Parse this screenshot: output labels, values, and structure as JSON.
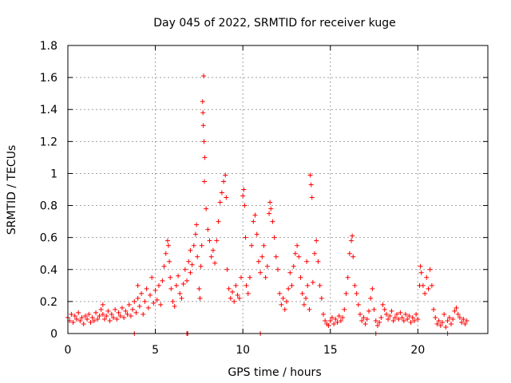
{
  "chart_data": {
    "type": "scatter",
    "title": "Day 045 of 2022, SRMTID for receiver kuge",
    "xlabel": "GPS time / hours",
    "ylabel": "SRMTID / TECUs",
    "xlim": [
      0,
      24
    ],
    "ylim": [
      0,
      1.8
    ],
    "xticks": [
      0,
      5,
      10,
      15,
      20
    ],
    "xtick_labels": [
      "0",
      "5",
      "10",
      "15",
      "20"
    ],
    "yticks": [
      0,
      0.2,
      0.4,
      0.6,
      0.8,
      1,
      1.2,
      1.4,
      1.6,
      1.8
    ],
    "ytick_labels": [
      "0",
      "0.2",
      "0.4",
      "0.6",
      "0.8",
      "1",
      "1.2",
      "1.4",
      "1.6",
      "1.8"
    ],
    "grid": true,
    "marker": "+",
    "color": "#ff0000",
    "series": [
      {
        "name": "SRMTID",
        "points": [
          [
            0.0,
            0.1
          ],
          [
            0.1,
            0.08
          ],
          [
            0.2,
            0.12
          ],
          [
            0.3,
            0.07
          ],
          [
            0.4,
            0.11
          ],
          [
            0.5,
            0.09
          ],
          [
            0.6,
            0.13
          ],
          [
            0.7,
            0.08
          ],
          [
            0.8,
            0.1
          ],
          [
            0.9,
            0.06
          ],
          [
            1.0,
            0.11
          ],
          [
            1.1,
            0.09
          ],
          [
            1.2,
            0.12
          ],
          [
            1.3,
            0.07
          ],
          [
            1.4,
            0.1
          ],
          [
            1.5,
            0.08
          ],
          [
            1.6,
            0.13
          ],
          [
            1.7,
            0.09
          ],
          [
            1.8,
            0.11
          ],
          [
            1.9,
            0.15
          ],
          [
            2.0,
            0.12
          ],
          [
            2.0,
            0.18
          ],
          [
            2.1,
            0.09
          ],
          [
            2.2,
            0.11
          ],
          [
            2.3,
            0.14
          ],
          [
            2.4,
            0.08
          ],
          [
            2.5,
            0.12
          ],
          [
            2.6,
            0.1
          ],
          [
            2.7,
            0.15
          ],
          [
            2.8,
            0.09
          ],
          [
            2.9,
            0.13
          ],
          [
            3.0,
            0.11
          ],
          [
            3.1,
            0.16
          ],
          [
            3.2,
            0.1
          ],
          [
            3.3,
            0.14
          ],
          [
            3.4,
            0.12
          ],
          [
            3.5,
            0.18
          ],
          [
            3.6,
            0.11
          ],
          [
            3.7,
            0.15
          ],
          [
            3.8,
            0.2
          ],
          [
            3.9,
            0.13
          ],
          [
            4.0,
            0.22
          ],
          [
            4.0,
            0.3
          ],
          [
            4.1,
            0.17
          ],
          [
            4.2,
            0.25
          ],
          [
            4.3,
            0.12
          ],
          [
            4.4,
            0.2
          ],
          [
            4.5,
            0.28
          ],
          [
            4.6,
            0.16
          ],
          [
            4.7,
            0.24
          ],
          [
            4.8,
            0.35
          ],
          [
            4.9,
            0.19
          ],
          [
            5.0,
            0.27
          ],
          [
            5.1,
            0.21
          ],
          [
            5.2,
            0.3
          ],
          [
            5.3,
            0.18
          ],
          [
            5.4,
            0.33
          ],
          [
            5.5,
            0.42
          ],
          [
            5.6,
            0.5
          ],
          [
            5.7,
            0.58
          ],
          [
            5.75,
            0.55
          ],
          [
            5.8,
            0.45
          ],
          [
            5.85,
            0.35
          ],
          [
            5.9,
            0.28
          ],
          [
            6.0,
            0.2
          ],
          [
            6.1,
            0.17
          ],
          [
            6.2,
            0.3
          ],
          [
            6.3,
            0.36
          ],
          [
            6.4,
            0.25
          ],
          [
            6.5,
            0.22
          ],
          [
            6.6,
            0.31
          ],
          [
            6.7,
            0.4
          ],
          [
            6.8,
            0.33
          ],
          [
            6.9,
            0.45
          ],
          [
            7.0,
            0.52
          ],
          [
            7.0,
            0.38
          ],
          [
            7.1,
            0.43
          ],
          [
            7.2,
            0.55
          ],
          [
            7.3,
            0.62
          ],
          [
            7.35,
            0.68
          ],
          [
            7.4,
            0.48
          ],
          [
            7.5,
            0.28
          ],
          [
            7.55,
            0.22
          ],
          [
            7.6,
            0.42
          ],
          [
            7.65,
            0.55
          ],
          [
            7.7,
            1.45
          ],
          [
            7.72,
            1.38
          ],
          [
            7.74,
            1.3
          ],
          [
            7.76,
            1.61
          ],
          [
            7.78,
            1.2
          ],
          [
            7.8,
            0.95
          ],
          [
            7.82,
            1.1
          ],
          [
            7.9,
            0.78
          ],
          [
            8.0,
            0.65
          ],
          [
            8.1,
            0.58
          ],
          [
            8.2,
            0.48
          ],
          [
            8.3,
            0.52
          ],
          [
            8.4,
            0.44
          ],
          [
            8.5,
            0.58
          ],
          [
            8.6,
            0.7
          ],
          [
            8.7,
            0.82
          ],
          [
            8.8,
            0.88
          ],
          [
            8.9,
            0.95
          ],
          [
            9.0,
            0.99
          ],
          [
            9.05,
            0.85
          ],
          [
            9.1,
            0.4
          ],
          [
            9.2,
            0.28
          ],
          [
            9.3,
            0.22
          ],
          [
            9.4,
            0.26
          ],
          [
            9.5,
            0.2
          ],
          [
            9.6,
            0.3
          ],
          [
            9.7,
            0.24
          ],
          [
            9.8,
            0.22
          ],
          [
            9.9,
            0.35
          ],
          [
            10.0,
            0.86
          ],
          [
            10.05,
            0.9
          ],
          [
            10.1,
            0.8
          ],
          [
            10.15,
            0.6
          ],
          [
            10.2,
            0.3
          ],
          [
            10.3,
            0.25
          ],
          [
            10.4,
            0.35
          ],
          [
            10.5,
            0.55
          ],
          [
            10.6,
            0.7
          ],
          [
            10.7,
            0.74
          ],
          [
            10.8,
            0.62
          ],
          [
            10.9,
            0.45
          ],
          [
            11.0,
            0.38
          ],
          [
            11.1,
            0.48
          ],
          [
            11.2,
            0.55
          ],
          [
            11.3,
            0.35
          ],
          [
            11.4,
            0.42
          ],
          [
            11.5,
            0.75
          ],
          [
            11.55,
            0.82
          ],
          [
            11.6,
            0.78
          ],
          [
            11.7,
            0.7
          ],
          [
            11.8,
            0.6
          ],
          [
            11.9,
            0.48
          ],
          [
            12.0,
            0.4
          ],
          [
            12.1,
            0.25
          ],
          [
            12.2,
            0.18
          ],
          [
            12.3,
            0.22
          ],
          [
            12.4,
            0.15
          ],
          [
            12.5,
            0.2
          ],
          [
            12.6,
            0.28
          ],
          [
            12.7,
            0.38
          ],
          [
            12.8,
            0.3
          ],
          [
            12.9,
            0.42
          ],
          [
            13.0,
            0.5
          ],
          [
            13.1,
            0.55
          ],
          [
            13.2,
            0.48
          ],
          [
            13.3,
            0.35
          ],
          [
            13.4,
            0.25
          ],
          [
            13.5,
            0.18
          ],
          [
            13.6,
            0.22
          ],
          [
            13.65,
            0.45
          ],
          [
            13.7,
            0.3
          ],
          [
            13.8,
            0.15
          ],
          [
            13.85,
            0.99
          ],
          [
            13.9,
            0.93
          ],
          [
            13.95,
            0.85
          ],
          [
            14.0,
            0.32
          ],
          [
            14.1,
            0.5
          ],
          [
            14.2,
            0.58
          ],
          [
            14.3,
            0.45
          ],
          [
            14.4,
            0.3
          ],
          [
            14.5,
            0.22
          ],
          [
            14.6,
            0.12
          ],
          [
            14.7,
            0.08
          ],
          [
            14.8,
            0.06
          ],
          [
            14.9,
            0.05
          ],
          [
            15.0,
            0.08
          ],
          [
            15.1,
            0.1
          ],
          [
            15.2,
            0.06
          ],
          [
            15.3,
            0.09
          ],
          [
            15.4,
            0.07
          ],
          [
            15.5,
            0.11
          ],
          [
            15.6,
            0.08
          ],
          [
            15.7,
            0.1
          ],
          [
            15.8,
            0.15
          ],
          [
            15.9,
            0.25
          ],
          [
            16.0,
            0.35
          ],
          [
            16.1,
            0.5
          ],
          [
            16.2,
            0.58
          ],
          [
            16.25,
            0.61
          ],
          [
            16.3,
            0.48
          ],
          [
            16.4,
            0.3
          ],
          [
            16.5,
            0.25
          ],
          [
            16.6,
            0.18
          ],
          [
            16.7,
            0.12
          ],
          [
            16.8,
            0.08
          ],
          [
            16.9,
            0.1
          ],
          [
            17.0,
            0.06
          ],
          [
            17.1,
            0.09
          ],
          [
            17.2,
            0.14
          ],
          [
            17.3,
            0.22
          ],
          [
            17.4,
            0.28
          ],
          [
            17.5,
            0.15
          ],
          [
            17.6,
            0.08
          ],
          [
            17.7,
            0.05
          ],
          [
            17.8,
            0.07
          ],
          [
            17.9,
            0.1
          ],
          [
            18.0,
            0.18
          ],
          [
            18.1,
            0.15
          ],
          [
            18.2,
            0.12
          ],
          [
            18.3,
            0.09
          ],
          [
            18.4,
            0.11
          ],
          [
            18.5,
            0.14
          ],
          [
            18.6,
            0.08
          ],
          [
            18.7,
            0.1
          ],
          [
            18.8,
            0.12
          ],
          [
            18.9,
            0.09
          ],
          [
            19.0,
            0.13
          ],
          [
            19.1,
            0.1
          ],
          [
            19.2,
            0.08
          ],
          [
            19.3,
            0.12
          ],
          [
            19.4,
            0.09
          ],
          [
            19.5,
            0.11
          ],
          [
            19.6,
            0.07
          ],
          [
            19.7,
            0.1
          ],
          [
            19.8,
            0.08
          ],
          [
            19.9,
            0.12
          ],
          [
            20.0,
            0.09
          ],
          [
            20.1,
            0.3
          ],
          [
            20.15,
            0.42
          ],
          [
            20.2,
            0.38
          ],
          [
            20.3,
            0.3
          ],
          [
            20.4,
            0.25
          ],
          [
            20.5,
            0.35
          ],
          [
            20.6,
            0.28
          ],
          [
            20.7,
            0.4
          ],
          [
            20.8,
            0.3
          ],
          [
            20.9,
            0.15
          ],
          [
            21.0,
            0.1
          ],
          [
            21.1,
            0.06
          ],
          [
            21.2,
            0.08
          ],
          [
            21.3,
            0.05
          ],
          [
            21.4,
            0.07
          ],
          [
            21.5,
            0.12
          ],
          [
            21.6,
            0.04
          ],
          [
            21.7,
            0.08
          ],
          [
            21.8,
            0.1
          ],
          [
            21.9,
            0.06
          ],
          [
            22.0,
            0.09
          ],
          [
            22.1,
            0.14
          ],
          [
            22.2,
            0.16
          ],
          [
            22.3,
            0.12
          ],
          [
            22.4,
            0.1
          ],
          [
            22.5,
            0.07
          ],
          [
            22.6,
            0.09
          ],
          [
            22.7,
            0.06
          ],
          [
            22.8,
            0.08
          ],
          [
            3.8,
            0.0
          ],
          [
            6.8,
            0.0
          ],
          [
            6.85,
            0.0
          ],
          [
            11.0,
            0.0
          ],
          [
            17.6,
            0.0
          ],
          [
            21.7,
            0.0
          ]
        ]
      }
    ]
  }
}
